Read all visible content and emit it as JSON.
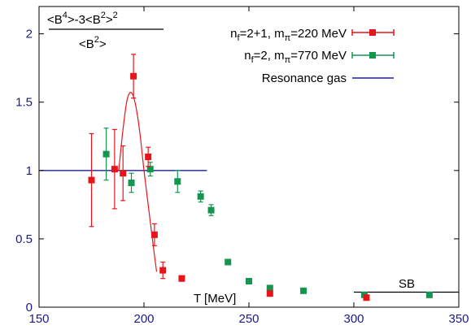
{
  "chart_data": {
    "type": "scatter",
    "title": "",
    "xlabel": "T [MeV]",
    "ylabel": "<B4>-3<B2>2 / <B2>",
    "xlim": [
      150,
      350
    ],
    "ylim": [
      0,
      2.2
    ],
    "xticks": [
      150,
      200,
      250,
      300,
      350
    ],
    "yticks": [
      0,
      0.5,
      1,
      1.5,
      2
    ],
    "xtick_labels": [
      "150",
      "200",
      "250",
      "300",
      "350"
    ],
    "ytick_labels": [
      "0",
      "0.5",
      "1",
      "1.5",
      "2"
    ],
    "legend_position": "top-right",
    "ylabel_parts": {
      "num_a": "<B",
      "num_sup1": "4",
      "num_b": ">-3<B",
      "num_sup2": "2",
      "num_c": ">",
      "num_sup3": "2",
      "den_a": "<B",
      "den_sup": "2",
      "den_b": ">"
    },
    "series": [
      {
        "name": "nf=2+1, mπ=220 MeV",
        "legend_parts": {
          "a": "n",
          "sub1": "f",
          "b": "=2+1, m",
          "sub2": "π",
          "c": "=220 MeV"
        },
        "color": "#e8141a",
        "marker": "square",
        "points": [
          {
            "x": 175,
            "y": 0.93,
            "err": 0.34
          },
          {
            "x": 186,
            "y": 1.01,
            "err": 0.29
          },
          {
            "x": 190,
            "y": 0.98,
            "err": 0.2
          },
          {
            "x": 195,
            "y": 1.69,
            "err": 0.16
          },
          {
            "x": 202,
            "y": 1.1,
            "err": 0.07
          },
          {
            "x": 205,
            "y": 0.53,
            "err": 0.08
          },
          {
            "x": 209,
            "y": 0.27,
            "err": 0.06
          },
          {
            "x": 218,
            "y": 0.21,
            "err": 0.02
          },
          {
            "x": 260,
            "y": 0.1,
            "err": 0.01
          },
          {
            "x": 306,
            "y": 0.07,
            "err": 0.01
          }
        ]
      },
      {
        "name": "nf=2, mπ=770 MeV",
        "legend_parts": {
          "a": "n",
          "sub1": "f",
          "b": "=2, m",
          "sub2": "π",
          "c": "=770 MeV"
        },
        "color": "#149650",
        "marker": "square",
        "points": [
          {
            "x": 182,
            "y": 1.12,
            "err": 0.19
          },
          {
            "x": 194,
            "y": 0.91,
            "err": 0.07
          },
          {
            "x": 203,
            "y": 1.01,
            "err": 0.05
          },
          {
            "x": 216,
            "y": 0.92,
            "err": 0.08
          },
          {
            "x": 227,
            "y": 0.81,
            "err": 0.04
          },
          {
            "x": 232,
            "y": 0.71,
            "err": 0.04
          },
          {
            "x": 240,
            "y": 0.33,
            "err": 0.01
          },
          {
            "x": 250,
            "y": 0.19,
            "err": 0.01
          },
          {
            "x": 260,
            "y": 0.14,
            "err": 0.01
          },
          {
            "x": 276,
            "y": 0.12,
            "err": 0.01
          },
          {
            "x": 305,
            "y": 0.09,
            "err": 0.01
          },
          {
            "x": 336,
            "y": 0.09,
            "err": 0.01
          }
        ]
      },
      {
        "name": "Resonance gas",
        "color": "#1a1abf",
        "type": "line",
        "x": [
          150,
          230
        ],
        "y": [
          1.0,
          1.0
        ]
      }
    ],
    "fit_curve": {
      "color": "#e8141a",
      "x": [
        188,
        190,
        192,
        194,
        196,
        198,
        200,
        202,
        204,
        206
      ],
      "y": [
        1.0,
        1.3,
        1.52,
        1.57,
        1.48,
        1.28,
        1.0,
        0.75,
        0.5,
        0.26
      ]
    },
    "sb_line": {
      "label": "SB",
      "color": "#000000",
      "x": [
        300,
        350
      ],
      "y": [
        0.11,
        0.11
      ]
    }
  }
}
